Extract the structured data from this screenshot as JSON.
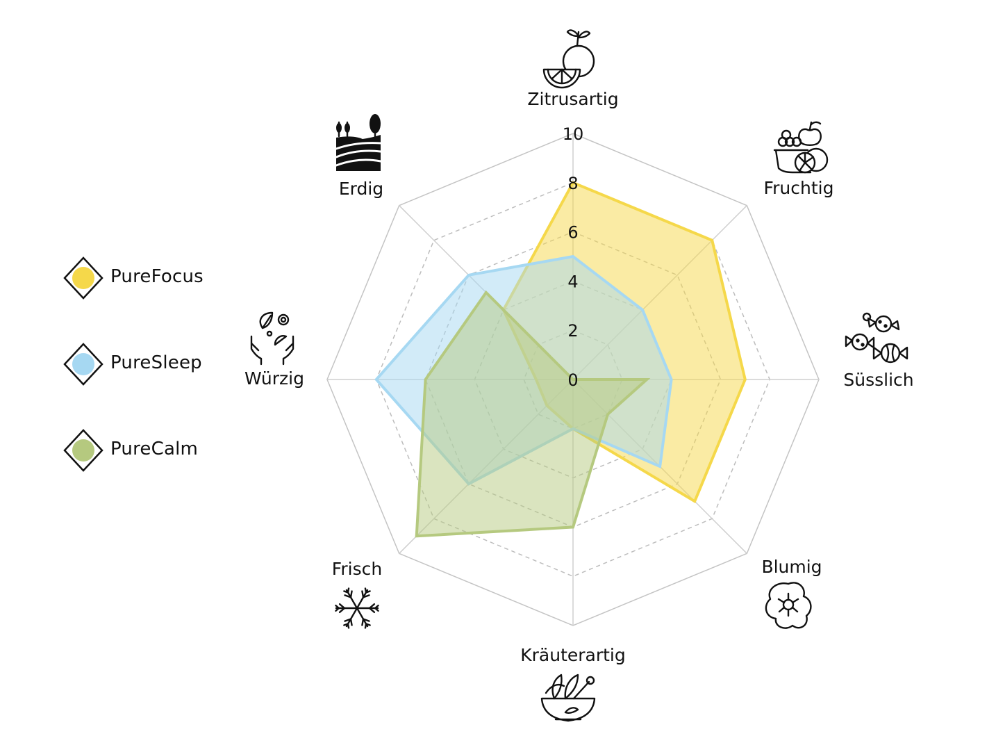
{
  "chart_data": {
    "type": "radar",
    "title": "",
    "axes": [
      "Zitrusartig",
      "Fruchtig",
      "Süsslich",
      "Blumig",
      "Kräuterartig",
      "Frisch",
      "Würzig",
      "Erdig"
    ],
    "axis_icons": [
      "citrus-fruit-icon",
      "fruit-basket-icon",
      "candy-icon",
      "flower-icon",
      "herb-bowl-icon",
      "snowflake-icon",
      "spice-hands-icon",
      "landscape-icon"
    ],
    "ticks": [
      "0",
      "2",
      "4",
      "6",
      "8",
      "10"
    ],
    "range": [
      0,
      10
    ],
    "series": [
      {
        "name": "PureFocus",
        "color": "#f5d84a",
        "values": [
          8,
          8,
          7,
          7,
          2,
          1.5,
          1.5,
          4
        ]
      },
      {
        "name": "PureSleep",
        "color": "#a6d8f2",
        "values": [
          5,
          4,
          4,
          5,
          2,
          6,
          8,
          6
        ]
      },
      {
        "name": "PureCalm",
        "color": "#b5c97f",
        "values": [
          0,
          0,
          3,
          2,
          6,
          9,
          6,
          5
        ]
      }
    ],
    "legend_position": "left",
    "grid": true
  }
}
